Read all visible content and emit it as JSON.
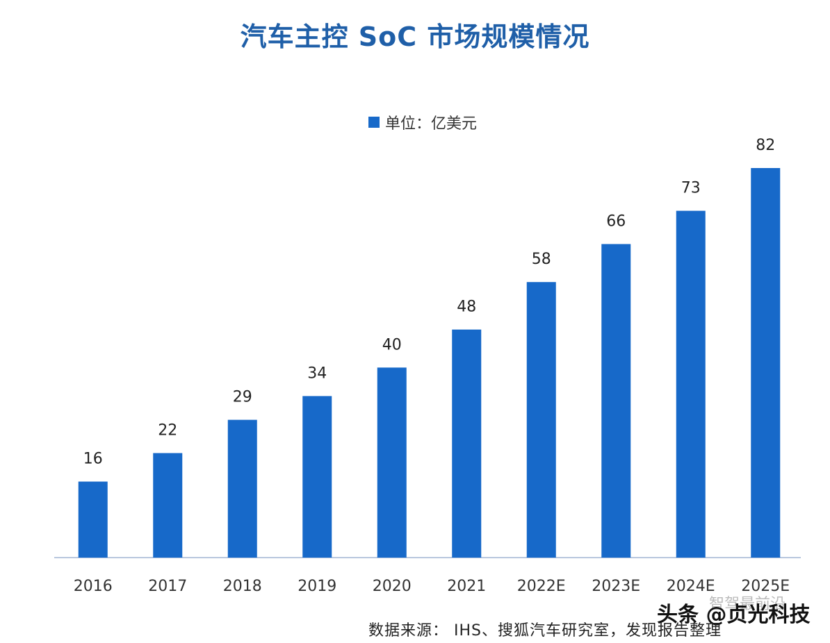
{
  "chart_data": {
    "type": "bar",
    "title": "汽车主控 SoC 市场规模情况",
    "legend": "单位：亿美元",
    "categories": [
      "2016",
      "2017",
      "2018",
      "2019",
      "2020",
      "2021",
      "2022E",
      "2023E",
      "2024E",
      "2025E"
    ],
    "values": [
      16,
      22,
      29,
      34,
      40,
      48,
      58,
      66,
      73,
      82
    ],
    "ylim": [
      0,
      82
    ],
    "grid": false,
    "legend_position": "top-center",
    "bar_color": "#1769c9",
    "axis_color": "#b8c7de"
  },
  "source": "数据来源： IHS、搜狐汽车研究室，发现报告整理",
  "watermark": "头条 @贞光科技",
  "watermark_faint": "智驾最前沿"
}
